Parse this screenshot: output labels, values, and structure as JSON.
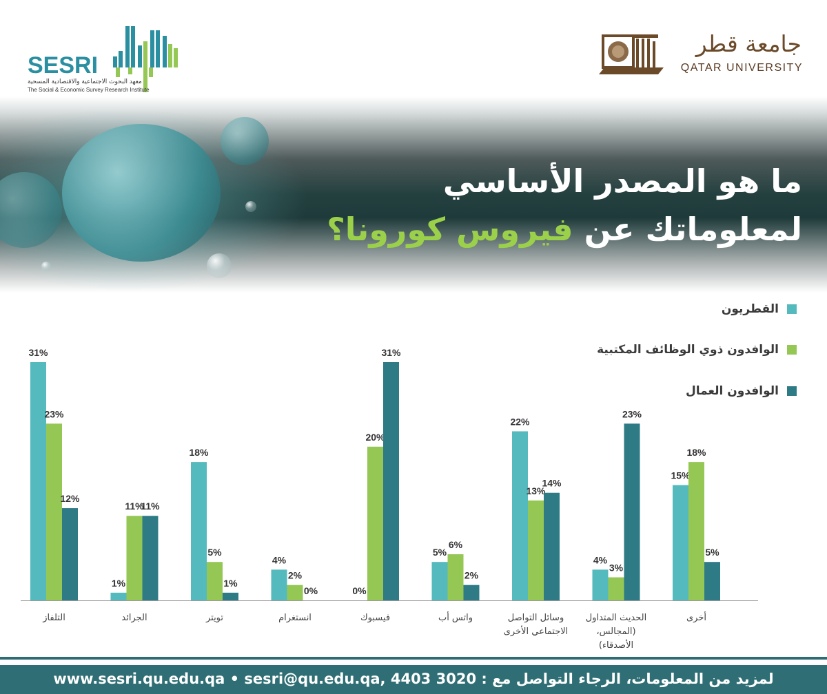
{
  "header": {
    "sesri_name": "SESRI",
    "sesri_subtitle_ar": "معهد البحوث الاجتماعية والاقتصادية المسحية",
    "sesri_subtitle_en": "The Social & Economic Survey Research Institute",
    "university_name_ar": "جامعة قطر",
    "university_name_en": "QATAR UNIVERSITY"
  },
  "banner": {
    "title_line1": "ما هو المصدر الأساسي",
    "title_line2_prefix": "لمعلوماتك عن ",
    "title_line2_highlight": "فيروس كورونا؟"
  },
  "legend": [
    {
      "label": "القطريون",
      "color": "#55babd"
    },
    {
      "label": "الوافدون ذوي الوظائف المكتبية",
      "color": "#95c755"
    },
    {
      "label": "الوافدون العمال",
      "color": "#2e7b86"
    }
  ],
  "chart_data": {
    "type": "bar",
    "categories": [
      [
        "التلفاز"
      ],
      [
        "الجرائد"
      ],
      [
        "تويتر"
      ],
      [
        "انستغرام"
      ],
      [
        "فيسبوك"
      ],
      [
        "واتس أب"
      ],
      [
        "وسائل التواصل",
        "الاجتماعي الأخرى"
      ],
      [
        "الحديث المتداول",
        "(المجالس،",
        "الأصدقاء)"
      ],
      [
        "أخرى"
      ]
    ],
    "series": [
      {
        "name": "القطريون",
        "color": "#55babd",
        "values": [
          31,
          1,
          18,
          4,
          0,
          5,
          22,
          4,
          15
        ]
      },
      {
        "name": "الوافدون ذوي الوظائف المكتبية",
        "color": "#95c755",
        "values": [
          23,
          11,
          5,
          2,
          20,
          6,
          13,
          3,
          18
        ]
      },
      {
        "name": "الوافدون العمال",
        "color": "#2e7b86",
        "values": [
          12,
          11,
          1,
          0,
          31,
          2,
          14,
          23,
          5
        ]
      }
    ],
    "value_suffix": "%",
    "ylim": [
      0,
      31
    ],
    "grid": false,
    "legend_position": "top-right"
  },
  "footer": {
    "contact_prefix": "لمزيد من المعلومات، الرجاء التواصل مع :",
    "phone": "4403 3020",
    "email": "sesri@qu.edu.qa,",
    "website": "www.sesri.qu.edu.qa"
  }
}
